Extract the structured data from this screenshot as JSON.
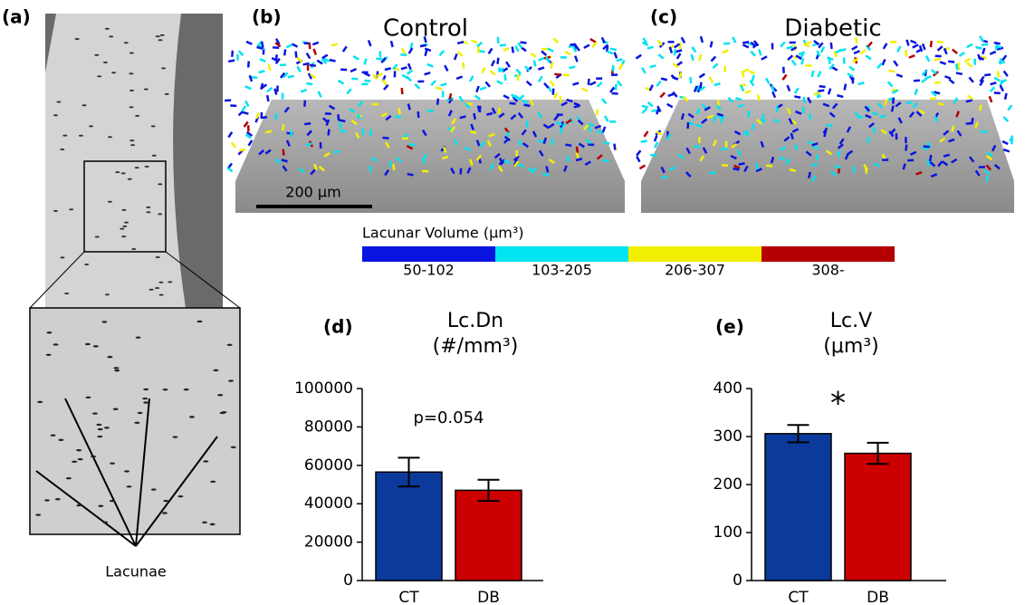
{
  "panels": {
    "a": {
      "label": "(a)",
      "annotation": "Lacunae"
    },
    "b": {
      "label": "(b)",
      "title": "Control",
      "scale_bar": "200 µm"
    },
    "c": {
      "label": "(c)",
      "title": "Diabetic"
    }
  },
  "color_legend": {
    "title": "Lacunar Volume (µm³)",
    "items": [
      {
        "label": "50-102",
        "color": "#0a14e0"
      },
      {
        "label": "103-205",
        "color": "#00e3f0"
      },
      {
        "label": "206-307",
        "color": "#f2ef00"
      },
      {
        "label": "308-",
        "color": "#b40000"
      }
    ]
  },
  "chart_data": [
    {
      "type": "bar",
      "panel_label": "(d)",
      "title": "Lc.Dn",
      "subtitle": "(#/mm³)",
      "categories": [
        "CT",
        "DB"
      ],
      "values": [
        56500,
        47000
      ],
      "errors": [
        7500,
        5500
      ],
      "colors": [
        "#0b3a9c",
        "#cc0000"
      ],
      "ylim": [
        0,
        100000
      ],
      "yticks": [
        0,
        20000,
        40000,
        60000,
        80000,
        100000
      ],
      "annotations": [
        "p=0.054"
      ]
    },
    {
      "type": "bar",
      "panel_label": "(e)",
      "title": "Lc.V",
      "subtitle": "(μm³)",
      "categories": [
        "CT",
        "DB"
      ],
      "values": [
        306,
        265
      ],
      "errors": [
        18,
        22
      ],
      "colors": [
        "#0b3a9c",
        "#cc0000"
      ],
      "ylim": [
        0,
        400
      ],
      "yticks": [
        0,
        100,
        200,
        300,
        400
      ],
      "annotations": [
        "*"
      ]
    }
  ]
}
